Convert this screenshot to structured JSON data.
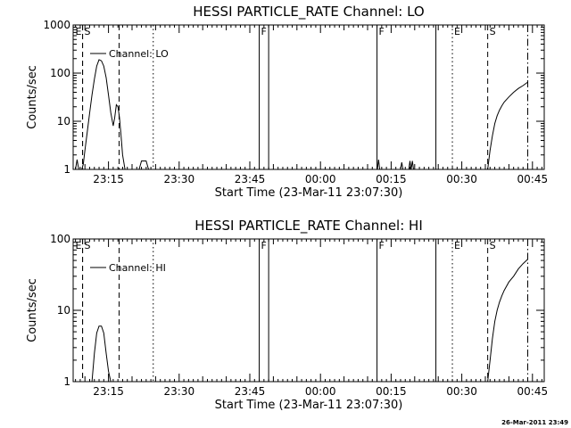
{
  "footer": {
    "timestamp": "26-Mar-2011 23:49"
  },
  "chart_data": [
    {
      "type": "line",
      "title": "HESSI PARTICLE_RATE Channel: LO",
      "xlabel": "Start Time (23-Mar-11 23:07:30)",
      "ylabel": "Counts/sec",
      "yscale": "log",
      "ylim": [
        1,
        1000
      ],
      "yticks": [
        1,
        10,
        100,
        1000
      ],
      "ytick_labels": [
        "1",
        "10",
        "100",
        "1000"
      ],
      "xlim": [
        "23:07:30",
        "00:47:30"
      ],
      "xticks": [
        "23:15",
        "23:30",
        "23:45",
        "00:00",
        "00:15",
        "00:30",
        "00:45"
      ],
      "legend": {
        "label": "Channel: LO",
        "position": "top-left"
      },
      "series": [
        {
          "x": [
            "23:08:00",
            "23:08:20",
            "23:08:40",
            "23:09:00",
            "23:09:20",
            "23:09:40",
            "23:10:00",
            "23:10:30",
            "23:11:00",
            "23:11:30",
            "23:12:00",
            "23:12:30",
            "23:13:00",
            "23:13:30",
            "23:14:00",
            "23:14:30",
            "23:15:00",
            "23:15:30",
            "23:16:00",
            "23:16:20",
            "23:16:40",
            "23:17:00",
            "23:17:20",
            "23:17:40",
            "23:18:00",
            "23:18:30",
            "23:19:00",
            "23:19:30",
            "23:20:00",
            "23:20:30",
            "23:21:00",
            "23:21:30",
            "23:22:00",
            "23:22:30",
            "23:23:00",
            "23:23:30",
            "23:24:00"
          ],
          "y": [
            1,
            1.6,
            1,
            1,
            1,
            1.3,
            2.5,
            6,
            15,
            35,
            75,
            140,
            190,
            180,
            140,
            80,
            35,
            15,
            8,
            12,
            22,
            20,
            12,
            5,
            2,
            1,
            1,
            1,
            1,
            1,
            1,
            1,
            1.5,
            1.5,
            1.5,
            1,
            1
          ]
        },
        {
          "x": [
            "00:12:05",
            "00:12:20",
            "00:12:35",
            "00:17:00",
            "00:17:15",
            "00:17:30",
            "00:18:45",
            "00:19:00",
            "00:19:15",
            "00:19:30",
            "00:19:45"
          ],
          "y": [
            1,
            1.6,
            1,
            1,
            1.4,
            1,
            1,
            1.5,
            1,
            1.5,
            1
          ]
        },
        {
          "x": [
            "00:35:30",
            "00:36:00",
            "00:36:30",
            "00:37:00",
            "00:37:30",
            "00:38:00",
            "00:38:30",
            "00:39:00",
            "00:40:00",
            "00:41:00",
            "00:42:00",
            "00:43:00",
            "00:44:00"
          ],
          "y": [
            1,
            2.5,
            5,
            9,
            13,
            17,
            21,
            25,
            32,
            40,
            48,
            55,
            65
          ]
        }
      ],
      "markers": [
        {
          "label": "E",
          "time": "23:09:30",
          "style": "dashed"
        },
        {
          "label": "S",
          "time": "23:09:30",
          "style": "dashed"
        },
        {
          "label": "",
          "time": "23:17:15",
          "style": "dashed"
        },
        {
          "label": "",
          "time": "23:24:30",
          "style": "dotted"
        },
        {
          "label": "F",
          "time": "23:47:00",
          "style": "solid"
        },
        {
          "label": "",
          "time": "23:49:00",
          "style": "solid"
        },
        {
          "label": "F",
          "time": "00:12:00",
          "style": "solid"
        },
        {
          "label": "",
          "time": "00:24:30",
          "style": "solid"
        },
        {
          "label": "E",
          "time": "00:28:00",
          "style": "dotted"
        },
        {
          "label": "S",
          "time": "00:35:30",
          "style": "dashed"
        },
        {
          "label": "",
          "time": "00:44:00",
          "style": "dashdot"
        }
      ]
    },
    {
      "type": "line",
      "title": "HESSI PARTICLE_RATE Channel: HI",
      "xlabel": "Start Time (23-Mar-11 23:07:30)",
      "ylabel": "Counts/sec",
      "yscale": "log",
      "ylim": [
        1,
        100
      ],
      "yticks": [
        1,
        10,
        100
      ],
      "ytick_labels": [
        "1",
        "10",
        "100"
      ],
      "xlim": [
        "23:07:30",
        "00:47:30"
      ],
      "xticks": [
        "23:15",
        "23:30",
        "23:45",
        "00:00",
        "00:15",
        "00:30",
        "00:45"
      ],
      "legend": {
        "label": "Channel: HI",
        "position": "top-left"
      },
      "series": [
        {
          "x": [
            "23:11:30",
            "23:12:00",
            "23:12:30",
            "23:13:00",
            "23:13:30",
            "23:14:00",
            "23:14:30",
            "23:15:00",
            "23:15:30"
          ],
          "y": [
            1,
            2.5,
            4.8,
            6,
            6,
            4.8,
            2.5,
            1.4,
            1
          ]
        },
        {
          "x": [
            "00:35:30",
            "00:36:00",
            "00:36:30",
            "00:37:00",
            "00:37:30",
            "00:38:00",
            "00:38:30",
            "00:39:00",
            "00:40:00",
            "00:41:00",
            "00:42:00",
            "00:43:00",
            "00:44:00"
          ],
          "y": [
            1,
            2,
            4,
            7,
            10,
            13,
            16,
            19,
            25,
            30,
            38,
            45,
            52
          ]
        }
      ],
      "markers": [
        {
          "label": "E",
          "time": "23:09:30",
          "style": "dashed"
        },
        {
          "label": "S",
          "time": "23:09:30",
          "style": "dashed"
        },
        {
          "label": "",
          "time": "23:17:15",
          "style": "dashed"
        },
        {
          "label": "",
          "time": "23:24:30",
          "style": "dotted"
        },
        {
          "label": "F",
          "time": "23:47:00",
          "style": "solid"
        },
        {
          "label": "",
          "time": "23:49:00",
          "style": "solid"
        },
        {
          "label": "F",
          "time": "00:12:00",
          "style": "solid"
        },
        {
          "label": "",
          "time": "00:24:30",
          "style": "solid"
        },
        {
          "label": "E",
          "time": "00:28:00",
          "style": "dotted"
        },
        {
          "label": "S",
          "time": "00:35:30",
          "style": "dashed"
        },
        {
          "label": "",
          "time": "00:44:00",
          "style": "dashdot"
        }
      ]
    }
  ]
}
